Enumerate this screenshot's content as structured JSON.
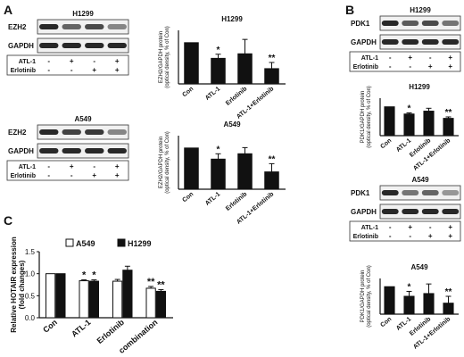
{
  "panel_labels": {
    "A": "A",
    "B": "B",
    "C": "C"
  },
  "blots": [
    {
      "cell": "H1299",
      "protein": "EZH2",
      "loading": "GAPDH",
      "rows": [
        {
          "label": "ATL-1",
          "marks": [
            "-",
            "+",
            "-",
            "+"
          ]
        },
        {
          "label": "Erlotinib",
          "marks": [
            "-",
            "-",
            "+",
            "+"
          ]
        }
      ]
    },
    {
      "cell": "A549",
      "protein": "EZH2",
      "loading": "GAPDH",
      "rows": [
        {
          "label": "ATL-1",
          "marks": [
            "-",
            "+",
            "-",
            "+"
          ]
        },
        {
          "label": "Erlotinib",
          "marks": [
            "-",
            "-",
            "+",
            "+"
          ]
        }
      ]
    },
    {
      "cell": "H1299",
      "protein": "PDK1",
      "loading": "GAPDH",
      "rows": [
        {
          "label": "ATL-1",
          "marks": [
            "-",
            "+",
            "-",
            "+"
          ]
        },
        {
          "label": "Erlotinib",
          "marks": [
            "-",
            "-",
            "+",
            "+"
          ]
        }
      ]
    },
    {
      "cell": "A549",
      "protein": "PDK1",
      "loading": "GAPDH",
      "rows": [
        {
          "label": "ATL-1",
          "marks": [
            "-",
            "+",
            "-",
            "+"
          ]
        },
        {
          "label": "Erlotinib",
          "marks": [
            "-",
            "-",
            "+",
            "+"
          ]
        }
      ]
    }
  ],
  "chart_data": [
    {
      "type": "bar",
      "title": "H1299",
      "ylabel": "EZH2/GAPDH protein (optical density, % of Con)",
      "categories": [
        "Con",
        "ATL-1",
        "Erlotinib",
        "ATL-1+Erlotinib"
      ],
      "values": [
        100,
        62,
        73,
        37
      ],
      "errors": [
        0,
        10,
        35,
        15
      ],
      "significance": [
        "",
        "*",
        "",
        "**"
      ],
      "ylim": [
        0,
        130
      ]
    },
    {
      "type": "bar",
      "title": "A549",
      "ylabel": "EZH2/GAPDH protein (optical density, % of Con)",
      "categories": [
        "Con",
        "ATL-1",
        "Erlotinib",
        "ATL-1+Erlotinib"
      ],
      "values": [
        100,
        73,
        86,
        42
      ],
      "errors": [
        0,
        13,
        15,
        20
      ],
      "significance": [
        "",
        "*",
        "",
        "**"
      ],
      "ylim": [
        0,
        130
      ]
    },
    {
      "type": "bar",
      "title": "H1299",
      "ylabel": "PDK1/GAPDH protein (optical density, % of Con)",
      "categories": [
        "Con",
        "ATL-1",
        "Erlotinib",
        "ATL-1+Erlotinib"
      ],
      "values": [
        100,
        75,
        85,
        60
      ],
      "errors": [
        0,
        4,
        10,
        5
      ],
      "significance": [
        "",
        "*",
        "",
        "**"
      ],
      "ylim": [
        0,
        130
      ]
    },
    {
      "type": "bar",
      "title": "A549",
      "ylabel": "PDK1/GAPDH protein (optical density, % of Con)",
      "categories": [
        "Con",
        "ATL-1",
        "Erlotinib",
        "ATL-1+Erlotinib"
      ],
      "values": [
        100,
        65,
        75,
        40
      ],
      "errors": [
        0,
        18,
        35,
        25
      ],
      "significance": [
        "",
        "*",
        "",
        "**"
      ],
      "ylim": [
        0,
        130
      ]
    },
    {
      "type": "bar",
      "title": "",
      "ylabel": "Relative HOTAIR expression (fold changes)",
      "categories": [
        "Con",
        "ATL-1",
        "Erlotinib",
        "combination"
      ],
      "series": [
        {
          "name": "A549",
          "values": [
            1.0,
            0.84,
            0.83,
            0.67
          ],
          "errors": [
            0,
            0.02,
            0.04,
            0.04
          ],
          "significance": [
            "",
            "*",
            "",
            "**"
          ],
          "color": "#ffffff"
        },
        {
          "name": "H1299",
          "values": [
            1.0,
            0.83,
            1.08,
            0.6
          ],
          "errors": [
            0,
            0.03,
            0.09,
            0.04
          ],
          "significance": [
            "",
            "*",
            "",
            "**"
          ],
          "color": "#111111"
        }
      ],
      "ylim": [
        0,
        1.5
      ],
      "yticks": [
        0.0,
        0.5,
        1.0,
        1.5
      ],
      "legend": "top"
    }
  ]
}
